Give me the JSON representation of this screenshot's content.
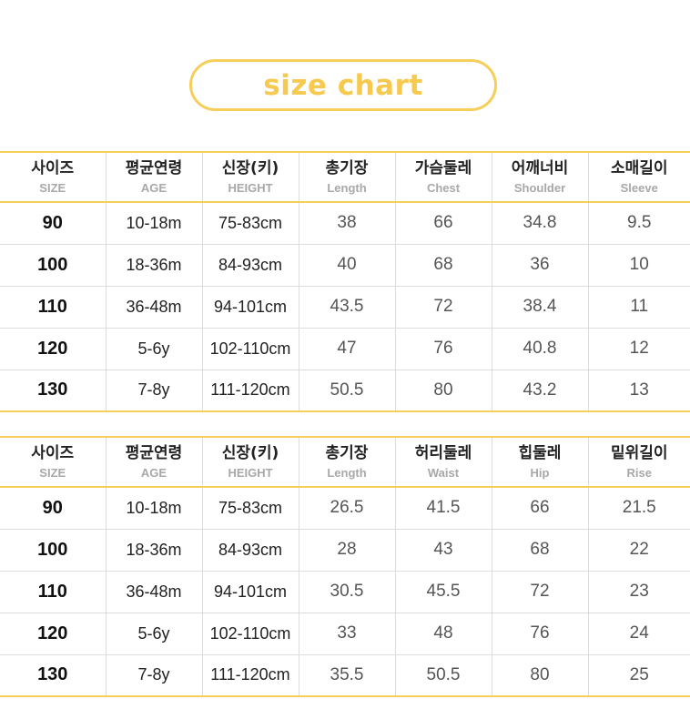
{
  "title": "size chart",
  "colors": {
    "accent": "#f5cf5a",
    "header_en": "#a8a8a8",
    "border": "#dddddd"
  },
  "tables": [
    {
      "headers": [
        {
          "kr": "사이즈",
          "en": "SIZE"
        },
        {
          "kr": "평균연령",
          "en": "AGE"
        },
        {
          "kr": "신장(키)",
          "en": "HEIGHT"
        },
        {
          "kr": "총기장",
          "en": "Length"
        },
        {
          "kr": "가슴둘레",
          "en": "Chest"
        },
        {
          "kr": "어깨너비",
          "en": "Shoulder"
        },
        {
          "kr": "소매길이",
          "en": "Sleeve"
        }
      ],
      "rows": [
        [
          "90",
          "10-18m",
          "75-83cm",
          "38",
          "66",
          "34.8",
          "9.5"
        ],
        [
          "100",
          "18-36m",
          "84-93cm",
          "40",
          "68",
          "36",
          "10"
        ],
        [
          "110",
          "36-48m",
          "94-101cm",
          "43.5",
          "72",
          "38.4",
          "11"
        ],
        [
          "120",
          "5-6y",
          "102-110cm",
          "47",
          "76",
          "40.8",
          "12"
        ],
        [
          "130",
          "7-8y",
          "111-120cm",
          "50.5",
          "80",
          "43.2",
          "13"
        ]
      ]
    },
    {
      "headers": [
        {
          "kr": "사이즈",
          "en": "SIZE"
        },
        {
          "kr": "평균연령",
          "en": "AGE"
        },
        {
          "kr": "신장(키)",
          "en": "HEIGHT"
        },
        {
          "kr": "총기장",
          "en": "Length"
        },
        {
          "kr": "허리둘레",
          "en": "Waist"
        },
        {
          "kr": "힙둘레",
          "en": "Hip"
        },
        {
          "kr": "밑위길이",
          "en": "Rise"
        }
      ],
      "rows": [
        [
          "90",
          "10-18m",
          "75-83cm",
          "26.5",
          "41.5",
          "66",
          "21.5"
        ],
        [
          "100",
          "18-36m",
          "84-93cm",
          "28",
          "43",
          "68",
          "22"
        ],
        [
          "110",
          "36-48m",
          "94-101cm",
          "30.5",
          "45.5",
          "72",
          "23"
        ],
        [
          "120",
          "5-6y",
          "102-110cm",
          "33",
          "48",
          "76",
          "24"
        ],
        [
          "130",
          "7-8y",
          "111-120cm",
          "35.5",
          "50.5",
          "80",
          "25"
        ]
      ]
    }
  ]
}
